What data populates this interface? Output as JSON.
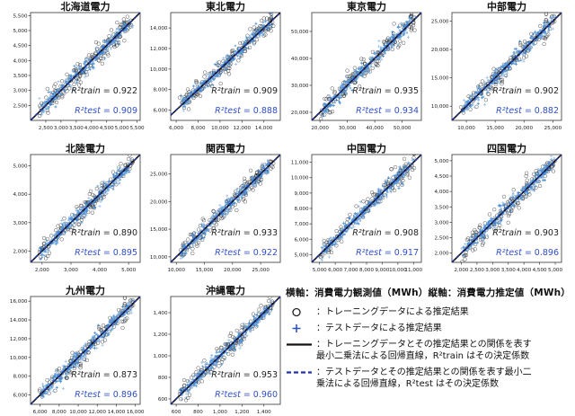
{
  "chart_data": [
    {
      "type": "scatter",
      "title": "北海道電力",
      "xlim": [
        2000,
        5600
      ],
      "ylim": [
        2000,
        5600
      ],
      "xticks": [
        2500,
        3000,
        3500,
        4000,
        4500,
        5000,
        5500
      ],
      "yticks": [
        2500,
        3000,
        3500,
        4000,
        4500,
        5000,
        5500
      ],
      "tick_labels_x": [
        "2,500",
        "3,000",
        "3,500",
        "4,000",
        "4,500",
        "5,000",
        "5,500"
      ],
      "tick_labels_y": [
        "2,500",
        "3,000",
        "3,500",
        "4,000",
        "4,500",
        "5,000",
        "5,500"
      ],
      "r2_train": "0.922",
      "r2_test": "0.909"
    },
    {
      "type": "scatter",
      "title": "東北電力",
      "xlim": [
        5500,
        15500
      ],
      "ylim": [
        5000,
        15500
      ],
      "xticks": [
        6000,
        8000,
        10000,
        12000,
        14000
      ],
      "yticks": [
        6000,
        8000,
        10000,
        12000,
        14000
      ],
      "tick_labels_x": [
        "6,000",
        "8,000",
        "10,000",
        "12,000",
        "14,000"
      ],
      "tick_labels_y": [
        "6,000",
        "8,000",
        "10,000",
        "12,000",
        "14,000"
      ],
      "r2_train": "0.909",
      "r2_test": "0.888"
    },
    {
      "type": "scatter",
      "title": "東京電力",
      "xlim": [
        17000,
        57000
      ],
      "ylim": [
        17000,
        57000
      ],
      "xticks": [
        20000,
        30000,
        40000,
        50000
      ],
      "yticks": [
        20000,
        30000,
        40000,
        50000
      ],
      "tick_labels_x": [
        "20,000",
        "30,000",
        "40,000",
        "50,000"
      ],
      "tick_labels_y": [
        "20,000",
        "30,000",
        "40,000",
        "50,000"
      ],
      "r2_train": "0.935",
      "r2_test": "0.934"
    },
    {
      "type": "scatter",
      "title": "中部電力",
      "xlim": [
        7500,
        26500
      ],
      "ylim": [
        7500,
        26500
      ],
      "xticks": [
        10000,
        15000,
        20000,
        25000
      ],
      "yticks": [
        10000,
        15000,
        20000,
        25000
      ],
      "tick_labels_x": [
        "10,000",
        "15,000",
        "20,000",
        "25,000"
      ],
      "tick_labels_y": [
        "10,000",
        "15,000",
        "20,000",
        "25,000"
      ],
      "r2_train": "0.902",
      "r2_test": "0.882"
    },
    {
      "type": "scatter",
      "title": "北陸電力",
      "xlim": [
        1600,
        5400
      ],
      "ylim": [
        1600,
        5400
      ],
      "xticks": [
        2000,
        3000,
        4000,
        5000
      ],
      "yticks": [
        2000,
        3000,
        4000,
        5000
      ],
      "tick_labels_x": [
        "2,000",
        "3,000",
        "4,000",
        "5,000"
      ],
      "tick_labels_y": [
        "2,000",
        "3,000",
        "4,000",
        "5,000"
      ],
      "r2_train": "0.890",
      "r2_test": "0.895"
    },
    {
      "type": "scatter",
      "title": "関西電力",
      "xlim": [
        9000,
        28500
      ],
      "ylim": [
        9000,
        28500
      ],
      "xticks": [
        10000,
        15000,
        20000,
        25000
      ],
      "yticks": [
        10000,
        15000,
        20000,
        25000
      ],
      "tick_labels_x": [
        "10,000",
        "15,000",
        "20,000",
        "25,000"
      ],
      "tick_labels_y": [
        "10,000",
        "15,000",
        "20,000",
        "25,000"
      ],
      "r2_train": "0.933",
      "r2_test": "0.922"
    },
    {
      "type": "scatter",
      "title": "中国電力",
      "xlim": [
        4500,
        11500
      ],
      "ylim": [
        4500,
        11500
      ],
      "xticks": [
        5000,
        6000,
        7000,
        8000,
        9000,
        10000,
        11000
      ],
      "yticks": [
        5000,
        6000,
        7000,
        8000,
        9000,
        10000,
        11000
      ],
      "tick_labels_x": [
        "5,000",
        "6,000",
        "7,000",
        "8,000",
        "9,000",
        "10,000",
        "11,000"
      ],
      "tick_labels_y": [
        "5,000",
        "6,000",
        "7,000",
        "8,000",
        "9,000",
        "10,000",
        "11,000"
      ],
      "r2_train": "0.908",
      "r2_test": "0.917"
    },
    {
      "type": "scatter",
      "title": "四国電力",
      "xlim": [
        1700,
        5200
      ],
      "ylim": [
        1700,
        5200
      ],
      "xticks": [
        2000,
        2500,
        3000,
        3500,
        4000,
        4500,
        5000
      ],
      "yticks": [
        2000,
        2500,
        3000,
        3500,
        4000,
        4500,
        5000
      ],
      "tick_labels_x": [
        "2,000",
        "2,500",
        "3,000",
        "3,500",
        "4,000",
        "4,500",
        "5,000"
      ],
      "tick_labels_y": [
        "2,000",
        "2,500",
        "3,000",
        "3,500",
        "4,000",
        "4,500",
        "5,000"
      ],
      "r2_train": "0.903",
      "r2_test": "0.896"
    },
    {
      "type": "scatter",
      "title": "九州電力",
      "xlim": [
        5000,
        16500
      ],
      "ylim": [
        5000,
        16500
      ],
      "xticks": [
        6000,
        8000,
        10000,
        12000,
        14000,
        16000
      ],
      "yticks": [
        6000,
        8000,
        10000,
        12000,
        14000,
        16000
      ],
      "tick_labels_x": [
        "6,000",
        "8,000",
        "10,000",
        "12,000",
        "14,000",
        "16,000"
      ],
      "tick_labels_y": [
        "6,000",
        "8,000",
        "10,000",
        "12,000",
        "14,000",
        "16,000"
      ],
      "r2_train": "0.873",
      "r2_test": "0.896"
    },
    {
      "type": "scatter",
      "title": "沖縄電力",
      "xlim": [
        550,
        1550
      ],
      "ylim": [
        550,
        1550
      ],
      "xticks": [
        600,
        800,
        1000,
        1200,
        1400
      ],
      "yticks": [
        600,
        800,
        1000,
        1200,
        1400
      ],
      "tick_labels_x": [
        "600",
        "800",
        "1,000",
        "1,200",
        "1,400"
      ],
      "tick_labels_y": [
        "600",
        "800",
        "1,000",
        "1,200",
        "1,400"
      ],
      "r2_train": "0.953",
      "r2_test": "0.960"
    }
  ],
  "r2_train_label": "R²train =",
  "r2_test_label": "R²test =",
  "legend": {
    "axis_note": "横軸：消費電力観測値（MWh）縦軸：消費電力推定値（MWh）",
    "training_points": "：トレーニングデータによる推定結果",
    "test_points": "：テストデータによる推定結果",
    "train_line_1": "：トレーニングデータとその推定結果との関係を表す",
    "train_line_2": "最小二乗法による回帰直線，R²train はその決定係数",
    "test_line_1": "：テストデータとその推定結果との関係を表す最小二",
    "test_line_2": "乗法による回帰直線，R²test はその決定係数"
  },
  "colors": {
    "train": "#222222",
    "test": "#2f4fc7",
    "cloud": "#4a90d6",
    "cloud_light": "#9cc3ea",
    "line_test": "#2233aa"
  }
}
